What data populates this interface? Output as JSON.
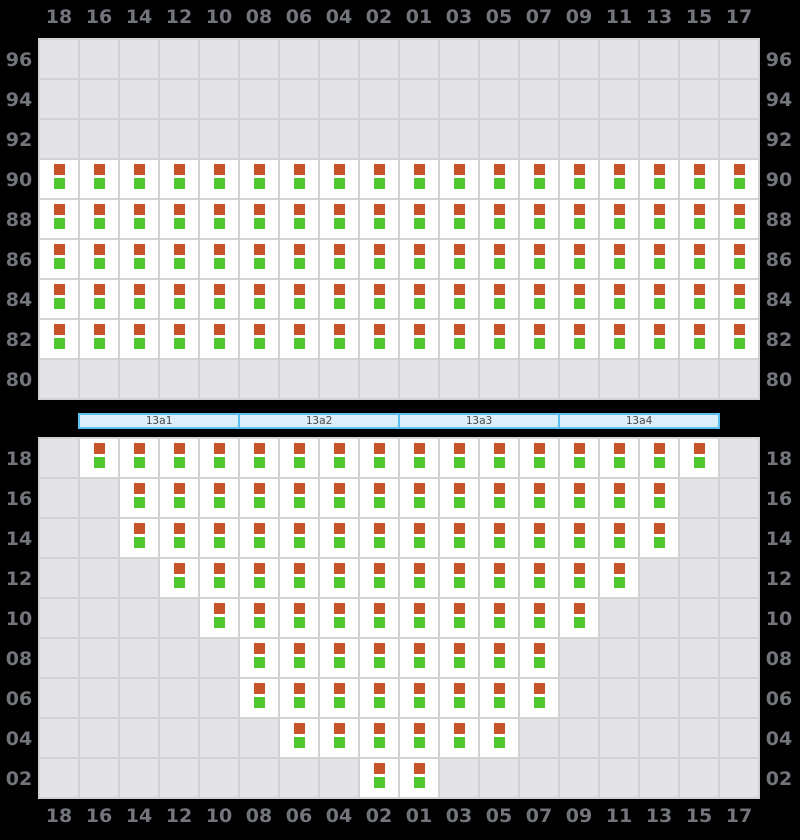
{
  "app": {
    "background": "#000000"
  },
  "axis": {
    "columns": [
      "18",
      "16",
      "14",
      "12",
      "10",
      "08",
      "06",
      "04",
      "02",
      "01",
      "03",
      "05",
      "07",
      "09",
      "11",
      "13",
      "15",
      "17"
    ],
    "label_color": "#73757c"
  },
  "grid_style": {
    "empty_cell": "#e4e4e7",
    "occupied_cell": "#ffffff",
    "line": "#d2d2d6"
  },
  "seat": {
    "top_color": "#c65329",
    "bottom_color": "#4fc72f"
  },
  "divider": {
    "segments": [
      "13a1",
      "13a2",
      "13a3",
      "13a4"
    ],
    "fill": "#dceef9",
    "border": "#5bc1ec",
    "text_color": "#4a4a4a"
  },
  "sections": {
    "upper": {
      "rows": [
        {
          "label": "96",
          "occupied": []
        },
        {
          "label": "94",
          "occupied": []
        },
        {
          "label": "92",
          "occupied": []
        },
        {
          "label": "90",
          "occupied": [
            "18",
            "16",
            "14",
            "12",
            "10",
            "08",
            "06",
            "04",
            "02",
            "01",
            "03",
            "05",
            "07",
            "09",
            "11",
            "13",
            "15",
            "17"
          ]
        },
        {
          "label": "88",
          "occupied": [
            "18",
            "16",
            "14",
            "12",
            "10",
            "08",
            "06",
            "04",
            "02",
            "01",
            "03",
            "05",
            "07",
            "09",
            "11",
            "13",
            "15",
            "17"
          ]
        },
        {
          "label": "86",
          "occupied": [
            "18",
            "16",
            "14",
            "12",
            "10",
            "08",
            "06",
            "04",
            "02",
            "01",
            "03",
            "05",
            "07",
            "09",
            "11",
            "13",
            "15",
            "17"
          ]
        },
        {
          "label": "84",
          "occupied": [
            "18",
            "16",
            "14",
            "12",
            "10",
            "08",
            "06",
            "04",
            "02",
            "01",
            "03",
            "05",
            "07",
            "09",
            "11",
            "13",
            "15",
            "17"
          ]
        },
        {
          "label": "82",
          "occupied": [
            "18",
            "16",
            "14",
            "12",
            "10",
            "08",
            "06",
            "04",
            "02",
            "01",
            "03",
            "05",
            "07",
            "09",
            "11",
            "13",
            "15",
            "17"
          ]
        },
        {
          "label": "80",
          "occupied": []
        }
      ]
    },
    "lower": {
      "rows": [
        {
          "label": "18",
          "occupied": [
            "16",
            "14",
            "12",
            "10",
            "08",
            "06",
            "04",
            "02",
            "01",
            "03",
            "05",
            "07",
            "09",
            "11",
            "13",
            "15"
          ]
        },
        {
          "label": "16",
          "occupied": [
            "14",
            "12",
            "10",
            "08",
            "06",
            "04",
            "02",
            "01",
            "03",
            "05",
            "07",
            "09",
            "11",
            "13"
          ]
        },
        {
          "label": "14",
          "occupied": [
            "14",
            "12",
            "10",
            "08",
            "06",
            "04",
            "02",
            "01",
            "03",
            "05",
            "07",
            "09",
            "11",
            "13"
          ]
        },
        {
          "label": "12",
          "occupied": [
            "12",
            "10",
            "08",
            "06",
            "04",
            "02",
            "01",
            "03",
            "05",
            "07",
            "09",
            "11"
          ]
        },
        {
          "label": "10",
          "occupied": [
            "10",
            "08",
            "06",
            "04",
            "02",
            "01",
            "03",
            "05",
            "07",
            "09"
          ]
        },
        {
          "label": "08",
          "occupied": [
            "08",
            "06",
            "04",
            "02",
            "01",
            "03",
            "05",
            "07"
          ]
        },
        {
          "label": "06",
          "occupied": [
            "08",
            "06",
            "04",
            "02",
            "01",
            "03",
            "05",
            "07"
          ]
        },
        {
          "label": "04",
          "occupied": [
            "06",
            "04",
            "02",
            "01",
            "03",
            "05"
          ]
        },
        {
          "label": "02",
          "occupied": [
            "02",
            "01"
          ]
        }
      ]
    }
  }
}
